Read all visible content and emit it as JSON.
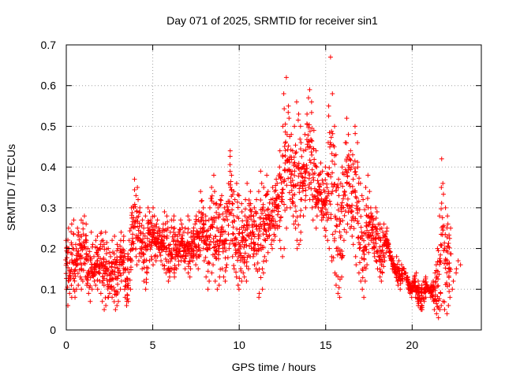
{
  "chart_data": {
    "type": "scatter",
    "title": "Day 071 of 2025, SRMTID for receiver sin1",
    "xlabel": "GPS time / hours",
    "ylabel": "SRMTID / TECUs",
    "xlim": [
      0,
      24
    ],
    "ylim": [
      0,
      0.7
    ],
    "xticks": [
      0,
      5,
      10,
      15,
      20
    ],
    "yticks": [
      0,
      0.1,
      0.2,
      0.3,
      0.4,
      0.5,
      0.6,
      0.7
    ],
    "xtick_labels": [
      "0",
      "5",
      "10",
      "15",
      "20"
    ],
    "ytick_labels": [
      "0",
      "0.1",
      "0.2",
      "0.3",
      "0.4",
      "0.5",
      "0.6",
      "0.7"
    ],
    "grid": true,
    "marker": "+",
    "marker_color": "#ff0000",
    "series": [
      {
        "name": "SRMTID",
        "x": [
          0.0,
          0.1,
          0.2,
          0.3,
          0.4,
          0.5,
          0.6,
          0.7,
          0.8,
          0.9,
          1.0,
          1.1,
          1.2,
          1.3,
          1.4,
          1.5,
          1.6,
          1.7,
          1.8,
          1.9,
          2.0,
          2.1,
          2.2,
          2.3,
          2.4,
          2.5,
          2.6,
          2.7,
          2.8,
          2.9,
          3.0,
          3.1,
          3.2,
          3.3,
          3.4,
          3.5,
          3.6,
          3.7,
          3.8,
          3.9,
          4.0,
          4.1,
          4.2,
          4.3,
          4.4,
          4.5,
          4.6,
          4.7,
          4.8,
          4.9,
          5.0,
          5.1,
          5.2,
          5.3,
          5.4,
          5.5,
          5.6,
          5.7,
          5.8,
          5.9,
          6.0,
          6.1,
          6.2,
          6.3,
          6.4,
          6.5,
          6.6,
          6.7,
          6.8,
          6.9,
          7.0,
          7.1,
          7.2,
          7.3,
          7.4,
          7.5,
          7.6,
          7.7,
          7.8,
          7.9,
          8.0,
          8.1,
          8.2,
          8.3,
          8.4,
          8.5,
          8.6,
          8.7,
          8.8,
          8.9,
          9.0,
          9.1,
          9.2,
          9.3,
          9.4,
          9.5,
          9.6,
          9.7,
          9.8,
          9.9,
          10.0,
          10.1,
          10.2,
          10.3,
          10.4,
          10.5,
          10.6,
          10.7,
          10.8,
          10.9,
          11.0,
          11.1,
          11.2,
          11.3,
          11.4,
          11.5,
          11.6,
          11.7,
          11.8,
          11.9,
          12.0,
          12.1,
          12.2,
          12.3,
          12.4,
          12.5,
          12.6,
          12.7,
          12.8,
          12.9,
          13.0,
          13.1,
          13.2,
          13.3,
          13.4,
          13.5,
          13.6,
          13.7,
          13.8,
          13.9,
          14.0,
          14.1,
          14.2,
          14.3,
          14.4,
          14.5,
          14.6,
          14.7,
          14.8,
          14.9,
          15.0,
          15.1,
          15.2,
          15.3,
          15.4,
          15.5,
          15.6,
          15.7,
          15.8,
          15.9,
          16.0,
          16.1,
          16.2,
          16.3,
          16.4,
          16.5,
          16.6,
          16.7,
          16.8,
          16.9,
          17.0,
          17.1,
          17.2,
          17.3,
          17.4,
          17.5,
          17.6,
          17.7,
          17.8,
          17.9,
          18.0,
          18.1,
          18.2,
          18.3,
          18.4,
          18.5,
          18.6,
          18.7,
          18.8,
          18.9,
          19.0,
          19.1,
          19.2,
          19.3,
          19.4,
          19.5,
          19.6,
          19.7,
          19.8,
          19.9,
          20.0,
          20.1,
          20.2,
          20.3,
          20.4,
          20.5,
          20.6,
          20.7,
          20.8,
          20.9,
          21.0,
          21.1,
          21.2,
          21.3,
          21.4,
          21.5,
          21.6,
          21.7,
          21.8,
          21.9,
          22.0,
          22.1,
          22.2,
          22.3,
          22.4,
          22.5,
          22.6,
          22.7,
          22.8
        ],
        "y_min": [
          0.1,
          0.06,
          0.09,
          0.08,
          0.1,
          0.08,
          0.1,
          0.11,
          0.13,
          0.1,
          0.12,
          0.13,
          0.11,
          0.09,
          0.07,
          0.1,
          0.12,
          0.11,
          0.1,
          0.12,
          0.09,
          0.07,
          0.05,
          0.06,
          0.08,
          0.09,
          0.1,
          0.08,
          0.05,
          0.06,
          0.07,
          0.1,
          0.12,
          0.14,
          0.08,
          0.06,
          0.07,
          0.1,
          0.17,
          0.2,
          0.18,
          0.16,
          0.17,
          0.18,
          0.15,
          0.12,
          0.1,
          0.14,
          0.17,
          0.18,
          0.16,
          0.18,
          0.17,
          0.18,
          0.19,
          0.17,
          0.16,
          0.15,
          0.14,
          0.12,
          0.13,
          0.15,
          0.14,
          0.13,
          0.15,
          0.16,
          0.17,
          0.18,
          0.17,
          0.15,
          0.14,
          0.13,
          0.15,
          0.17,
          0.18,
          0.16,
          0.15,
          0.18,
          0.22,
          0.2,
          0.17,
          0.13,
          0.1,
          0.12,
          0.14,
          0.16,
          0.12,
          0.1,
          0.11,
          0.13,
          0.15,
          0.13,
          0.12,
          0.16,
          0.2,
          0.22,
          0.18,
          0.15,
          0.13,
          0.11,
          0.1,
          0.12,
          0.14,
          0.13,
          0.12,
          0.15,
          0.18,
          0.2,
          0.18,
          0.16,
          0.15,
          0.08,
          0.09,
          0.1,
          0.14,
          0.18,
          0.17,
          0.19,
          0.21,
          0.2,
          0.22,
          0.23,
          0.25,
          0.22,
          0.2,
          0.18,
          0.2,
          0.25,
          0.3,
          0.32,
          0.3,
          0.28,
          0.26,
          0.22,
          0.2,
          0.21,
          0.24,
          0.28,
          0.3,
          0.33,
          0.35,
          0.32,
          0.3,
          0.27,
          0.25,
          0.28,
          0.3,
          0.29,
          0.27,
          0.25,
          0.23,
          0.22,
          0.2,
          0.18,
          0.17,
          0.14,
          0.11,
          0.09,
          0.08,
          0.13,
          0.18,
          0.22,
          0.24,
          0.26,
          0.25,
          0.23,
          0.21,
          0.18,
          0.16,
          0.14,
          0.12,
          0.1,
          0.08,
          0.12,
          0.16,
          0.19,
          0.22,
          0.2,
          0.18,
          0.17,
          0.15,
          0.13,
          0.12,
          0.14,
          0.17,
          0.19,
          0.2,
          0.18,
          0.17,
          0.15,
          0.14,
          0.12,
          0.11,
          0.1,
          0.12,
          0.15,
          0.14,
          0.12,
          0.1,
          0.09,
          0.08,
          0.1,
          0.08,
          0.07,
          0.06,
          0.05,
          0.05,
          0.07,
          0.08,
          0.1,
          0.09,
          0.08,
          0.07,
          0.05,
          0.04,
          0.03,
          0.05,
          0.06,
          0.07,
          0.05,
          0.04,
          0.06,
          0.08,
          0.1,
          0.12,
          0.14,
          0.15,
          0.17,
          0.16,
          0.15
        ],
        "y_max": [
          0.22,
          0.25,
          0.2,
          0.26,
          0.27,
          0.21,
          0.25,
          0.24,
          0.23,
          0.27,
          0.28,
          0.26,
          0.22,
          0.2,
          0.24,
          0.21,
          0.18,
          0.22,
          0.23,
          0.2,
          0.24,
          0.22,
          0.21,
          0.24,
          0.2,
          0.19,
          0.18,
          0.22,
          0.23,
          0.21,
          0.2,
          0.22,
          0.24,
          0.23,
          0.18,
          0.15,
          0.22,
          0.25,
          0.3,
          0.37,
          0.33,
          0.35,
          0.32,
          0.3,
          0.27,
          0.25,
          0.28,
          0.3,
          0.29,
          0.27,
          0.3,
          0.28,
          0.26,
          0.27,
          0.25,
          0.24,
          0.26,
          0.29,
          0.28,
          0.25,
          0.24,
          0.27,
          0.28,
          0.25,
          0.23,
          0.24,
          0.27,
          0.26,
          0.24,
          0.25,
          0.28,
          0.27,
          0.24,
          0.23,
          0.26,
          0.28,
          0.27,
          0.29,
          0.34,
          0.3,
          0.26,
          0.28,
          0.27,
          0.3,
          0.35,
          0.38,
          0.34,
          0.31,
          0.3,
          0.32,
          0.33,
          0.3,
          0.29,
          0.31,
          0.36,
          0.44,
          0.38,
          0.34,
          0.32,
          0.36,
          0.33,
          0.31,
          0.29,
          0.28,
          0.32,
          0.36,
          0.34,
          0.31,
          0.28,
          0.3,
          0.32,
          0.34,
          0.39,
          0.36,
          0.35,
          0.33,
          0.38,
          0.34,
          0.32,
          0.35,
          0.34,
          0.37,
          0.36,
          0.4,
          0.44,
          0.5,
          0.58,
          0.62,
          0.55,
          0.52,
          0.48,
          0.44,
          0.5,
          0.56,
          0.53,
          0.5,
          0.46,
          0.44,
          0.48,
          0.53,
          0.57,
          0.59,
          0.56,
          0.49,
          0.44,
          0.4,
          0.38,
          0.41,
          0.39,
          0.36,
          0.4,
          0.46,
          0.55,
          0.67,
          0.58,
          0.5,
          0.43,
          0.37,
          0.33,
          0.36,
          0.4,
          0.46,
          0.52,
          0.48,
          0.44,
          0.4,
          0.43,
          0.5,
          0.46,
          0.4,
          0.36,
          0.33,
          0.32,
          0.35,
          0.38,
          0.34,
          0.3,
          0.28,
          0.27,
          0.3,
          0.29,
          0.26,
          0.25,
          0.24,
          0.26,
          0.25,
          0.22,
          0.2,
          0.18,
          0.17,
          0.16,
          0.18,
          0.17,
          0.15,
          0.16,
          0.15,
          0.14,
          0.13,
          0.12,
          0.11,
          0.12,
          0.13,
          0.14,
          0.12,
          0.11,
          0.1,
          0.11,
          0.12,
          0.13,
          0.11,
          0.1,
          0.11,
          0.12,
          0.14,
          0.16,
          0.2,
          0.28,
          0.42,
          0.36,
          0.3,
          0.28,
          0.26,
          0.25
        ]
      }
    ]
  }
}
